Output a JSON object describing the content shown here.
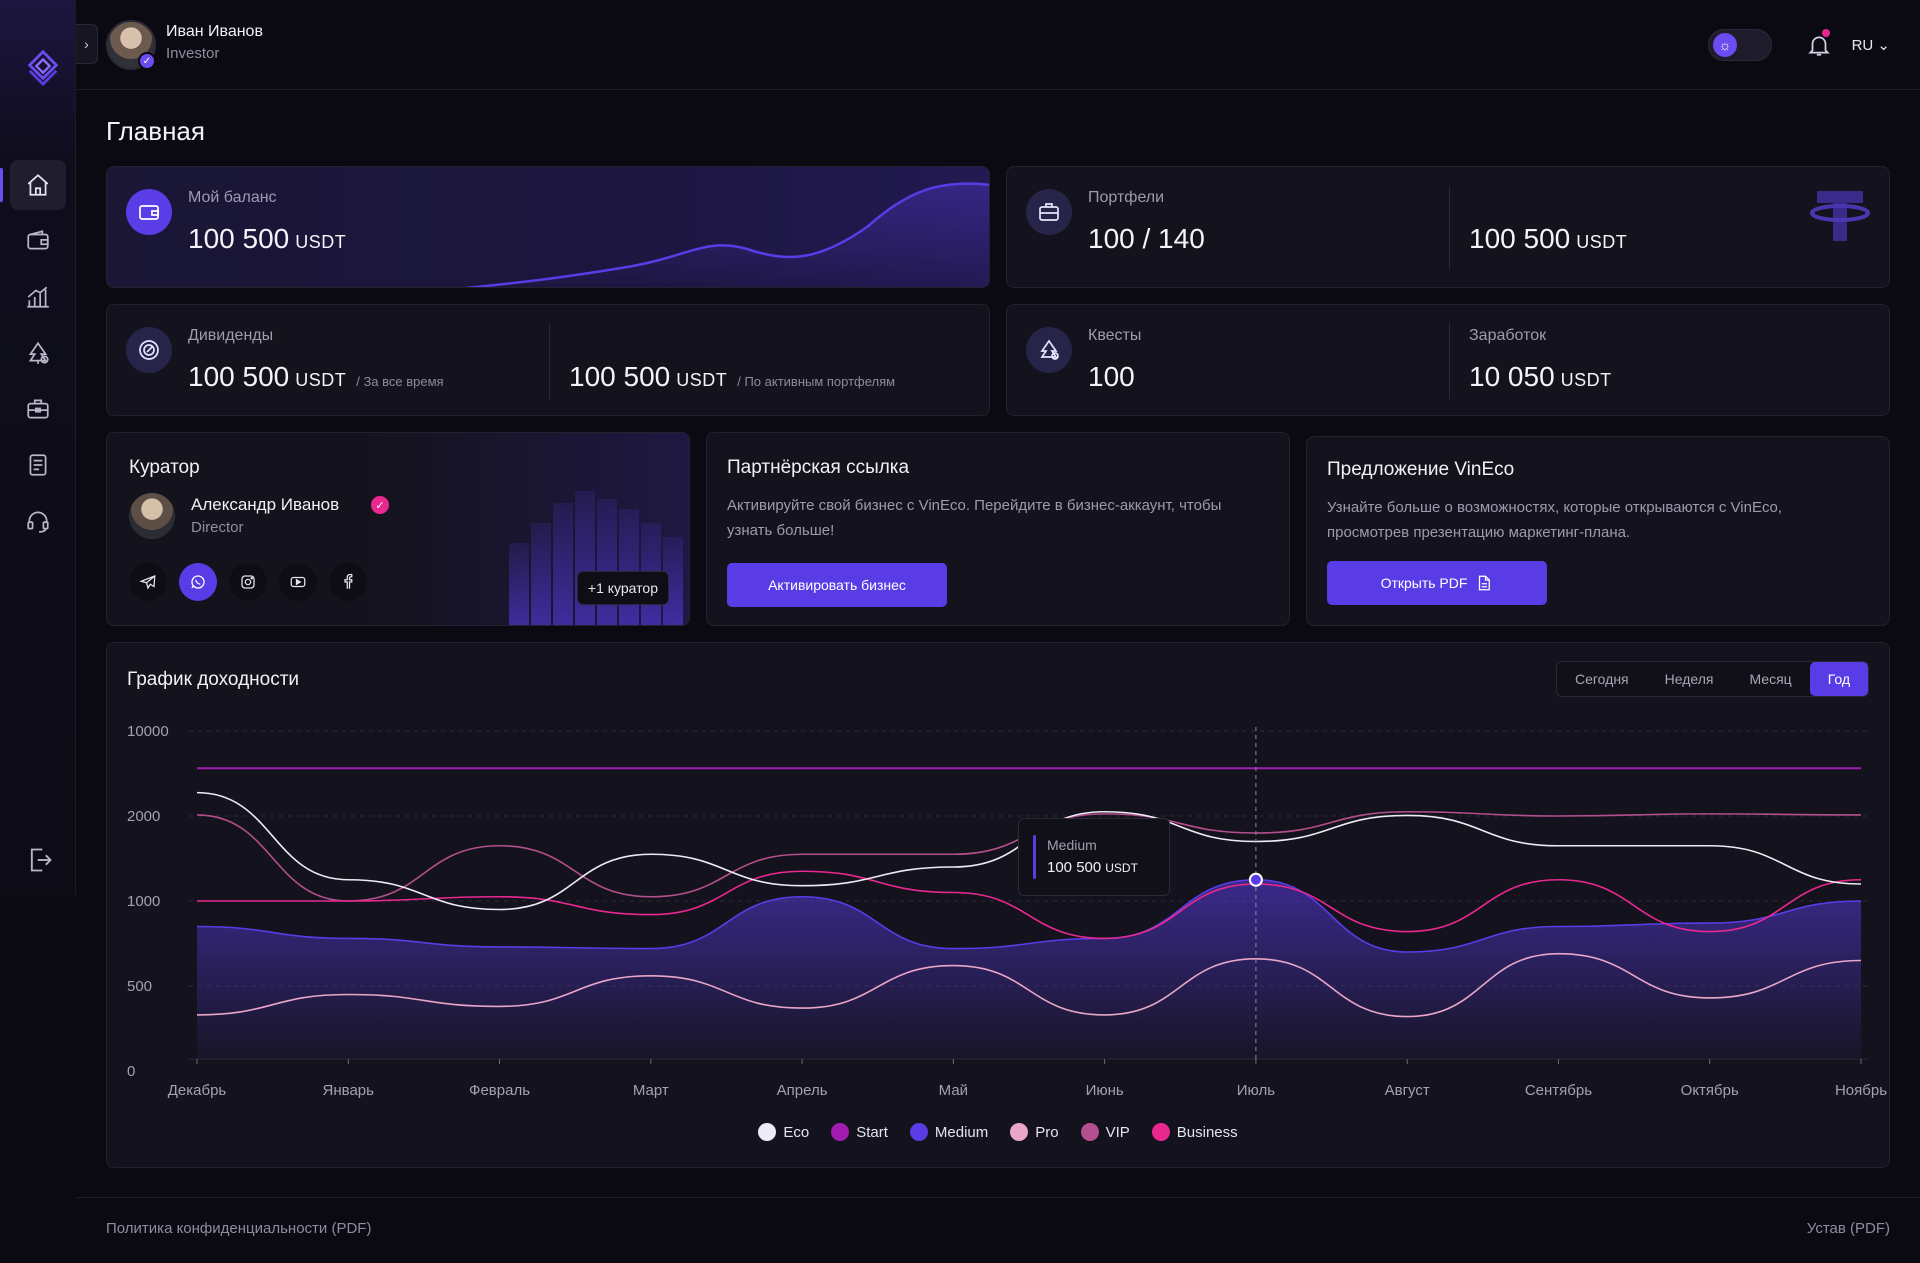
{
  "user": {
    "name": "Иван Иванов",
    "role": "Investor"
  },
  "header": {
    "lang": "RU ⌄",
    "theme_icon": "sun-icon",
    "collapse": "›"
  },
  "sidebar": {
    "items": [
      {
        "name": "home",
        "icon": "home-icon",
        "active": true
      },
      {
        "name": "wallet",
        "icon": "wallet-icon"
      },
      {
        "name": "analytics",
        "icon": "bar-chart-icon"
      },
      {
        "name": "eco",
        "icon": "tree-icon"
      },
      {
        "name": "portfolio",
        "icon": "briefcase-icon"
      },
      {
        "name": "documents",
        "icon": "document-icon"
      },
      {
        "name": "support",
        "icon": "headset-icon"
      }
    ]
  },
  "page": {
    "title": "Главная"
  },
  "balance": {
    "label": "Мой баланс",
    "value": "100 500",
    "unit": "USDT"
  },
  "portfolios": {
    "label": "Портфели",
    "count": "100 / 140",
    "value": "100 500",
    "unit": "USDT"
  },
  "dividends": {
    "label": "Дивиденды",
    "total_value": "100 500",
    "total_unit": "USDT",
    "total_note": "/ За все время",
    "active_value": "100 500",
    "active_unit": "USDT",
    "active_note": "/ По активным портфелям"
  },
  "quests": {
    "label": "Квесты",
    "value": "100"
  },
  "earnings": {
    "label": "Заработок",
    "value": "10 050",
    "unit": "USDT"
  },
  "curator": {
    "title": "Куратор",
    "name": "Александр Иванов",
    "role": "Director",
    "more": "+1 куратор",
    "socials": [
      "telegram-icon",
      "whatsapp-icon",
      "instagram-icon",
      "youtube-icon",
      "facebook-icon"
    ]
  },
  "partner": {
    "title": "Партнёрская ссылка",
    "desc": "Активируйте свой бизнес с VinEco. Перейдите в бизнес-аккаунт, чтобы узнать больше!",
    "button": "Активировать бизнес"
  },
  "offer": {
    "title": "Предложение VinEco",
    "desc": "Узнайте больше о возможностях, которые открываются с VinEco, просмотрев презентацию маркетинг-плана.",
    "button": "Открыть PDF"
  },
  "chart_section": {
    "title": "График доходности",
    "periods": [
      "Сегодня",
      "Неделя",
      "Месяц",
      "Год"
    ],
    "active_period": "Год",
    "tooltip": {
      "name": "Medium",
      "value": "100 500",
      "unit": "USDT"
    }
  },
  "chart_data": {
    "type": "line",
    "title": "График доходности",
    "y_ticks": [
      "10000",
      "2000",
      "1000",
      "500",
      "0"
    ],
    "categories": [
      "Декабрь",
      "Январь",
      "Февраль",
      "Март",
      "Апрель",
      "Май",
      "Июнь",
      "Июль",
      "Август",
      "Сентябрь",
      "Октябрь",
      "Ноябрь"
    ],
    "series": [
      {
        "name": "Eco",
        "color": "#eeeaf6",
        "values": [
          4200,
          1250,
          950,
          1550,
          1180,
          1400,
          2400,
          1700,
          2050,
          1650,
          1650,
          1200
        ]
      },
      {
        "name": "Start",
        "color": "#a21caf",
        "values": [
          6500,
          6500,
          6500,
          6500,
          6500,
          6500,
          6500,
          6500,
          6500,
          6500,
          6500,
          6500
        ]
      },
      {
        "name": "Medium",
        "color": "#5a3ce6",
        "values": [
          850,
          780,
          730,
          720,
          1050,
          720,
          780,
          1250,
          700,
          850,
          870,
          1000
        ]
      },
      {
        "name": "Pro",
        "color": "#e9a6c8",
        "values": [
          330,
          450,
          380,
          560,
          370,
          620,
          330,
          660,
          320,
          690,
          430,
          650
        ]
      },
      {
        "name": "VIP",
        "color": "#b34f8d",
        "values": [
          2100,
          1000,
          1650,
          1050,
          1550,
          1550,
          2200,
          1800,
          2400,
          2000,
          2200,
          2100
        ]
      },
      {
        "name": "Business",
        "color": "#e9288f",
        "values": [
          1000,
          1000,
          1050,
          920,
          1350,
          1100,
          780,
          1200,
          820,
          1250,
          820,
          1250
        ]
      }
    ]
  },
  "footer": {
    "privacy": "Политика конфиденциальности (PDF)",
    "charter": "Устав (PDF)"
  }
}
